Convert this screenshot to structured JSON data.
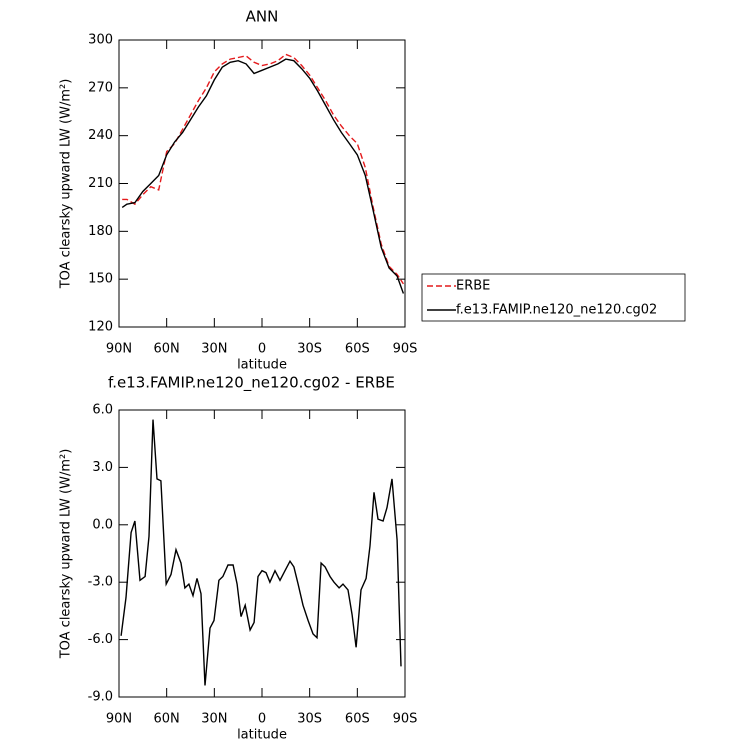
{
  "chart_data": [
    {
      "type": "line",
      "title": "ANN",
      "x_label": "latitude",
      "y_label": "TOA clearsky upward LW (W/m²)",
      "xlim": [
        90,
        -90
      ],
      "ylim": [
        120,
        300
      ],
      "xticks": [
        {
          "value": 90,
          "label": "90N"
        },
        {
          "value": 60,
          "label": "60N"
        },
        {
          "value": 30,
          "label": "30N"
        },
        0,
        {
          "value": -30,
          "label": "30S"
        },
        {
          "value": -60,
          "label": "60S"
        },
        {
          "value": -90,
          "label": "90S"
        }
      ],
      "yticks": [
        120,
        150,
        180,
        210,
        240,
        270,
        300
      ],
      "x": [
        88,
        85,
        80,
        75,
        70,
        65,
        60,
        55,
        50,
        45,
        40,
        35,
        30,
        25,
        20,
        15,
        10,
        5,
        0,
        -5,
        -10,
        -15,
        -20,
        -25,
        -30,
        -35,
        -40,
        -45,
        -50,
        -55,
        -60,
        -65,
        -70,
        -75,
        -80,
        -85,
        -89
      ],
      "series": [
        {
          "name": "ERBE",
          "color": "#e41a1c",
          "linestyle": "dashed",
          "values": [
            200,
            200,
            197,
            203,
            208,
            206,
            230,
            235,
            244,
            253,
            262,
            270,
            280,
            285,
            288,
            289,
            290,
            286,
            284,
            285,
            287,
            291,
            289,
            284,
            278,
            270,
            262,
            253,
            246,
            240,
            235,
            220,
            195,
            172,
            158,
            153,
            147
          ]
        },
        {
          "name": "f.e13.FAMIP.ne120_ne120.cg02",
          "color": "#000000",
          "linestyle": "solid",
          "values": [
            195,
            197,
            198,
            205,
            210,
            215,
            228,
            236,
            242,
            250,
            258,
            265,
            275,
            283,
            286,
            287,
            285,
            279,
            281,
            283,
            285,
            288,
            287,
            282,
            276,
            268,
            259,
            250,
            242,
            235,
            228,
            215,
            193,
            170,
            157,
            152,
            141
          ]
        }
      ],
      "legend": "right"
    },
    {
      "type": "line",
      "title": "f.e13.FAMIP.ne120_ne120.cg02 - ERBE",
      "x_label": "latitude",
      "y_label": "TOA clearsky upward LW (W/m²)",
      "xlim": [
        90,
        -90
      ],
      "ylim": [
        -9,
        6
      ],
      "xticks": [
        {
          "value": 90,
          "label": "90N"
        },
        {
          "value": 60,
          "label": "60N"
        },
        {
          "value": 30,
          "label": "30N"
        },
        0,
        {
          "value": -30,
          "label": "30S"
        },
        {
          "value": -60,
          "label": "60S"
        },
        {
          "value": -90,
          "label": "90S"
        }
      ],
      "yticks": [
        {
          "value": -9,
          "label": "-9.0"
        },
        {
          "value": -6,
          "label": "-6.0"
        },
        {
          "value": -3,
          "label": "-3.0"
        },
        {
          "value": 0,
          "label": "0.0"
        },
        {
          "value": 3,
          "label": "3.0"
        },
        {
          "value": 6,
          "label": "6.0"
        }
      ],
      "x": [
        88.7,
        85.6,
        82.4,
        80,
        76.8,
        73.6,
        71.1,
        68.6,
        66.1,
        63.6,
        60.3,
        57.3,
        54.1,
        51,
        48.5,
        46,
        43.4,
        40.9,
        38.4,
        35.9,
        32.7,
        30.2,
        27.1,
        24.6,
        21.4,
        18.2,
        15.7,
        13.2,
        10.6,
        7.5,
        5,
        2.5,
        0,
        -2.5,
        -5,
        -8.2,
        -11.3,
        -14.5,
        -17.6,
        -20.1,
        -22.7,
        -25.8,
        -29,
        -32.1,
        -34.6,
        -37.2,
        -39.7,
        -42.8,
        -45.3,
        -48.5,
        -51,
        -54.1,
        -56.7,
        -59.2,
        -62.3,
        -65.5,
        -68,
        -70.5,
        -73,
        -76.2,
        -78.7,
        -81.8,
        -85,
        -87.5
      ],
      "series": [
        {
          "name": "f.e13.FAMIP.ne120_ne120.cg02 - ERBE",
          "color": "#000000",
          "linestyle": "solid",
          "values": [
            -5.8,
            -3.8,
            -0.4,
            0.2,
            -2.9,
            -2.7,
            -0.6,
            5.5,
            2.4,
            2.3,
            -3.1,
            -2.6,
            -1.3,
            -2.0,
            -3.3,
            -3.1,
            -3.7,
            -2.8,
            -3.6,
            -8.4,
            -5.4,
            -5.0,
            -2.9,
            -2.7,
            -2.1,
            -2.1,
            -3.1,
            -4.8,
            -4.2,
            -5.5,
            -5.1,
            -2.7,
            -2.4,
            -2.5,
            -3.0,
            -2.4,
            -2.9,
            -2.4,
            -1.9,
            -2.2,
            -3.1,
            -4.2,
            -5.0,
            -5.7,
            -5.9,
            -2.0,
            -2.2,
            -2.7,
            -3.0,
            -3.3,
            -3.1,
            -3.4,
            -4.7,
            -6.4,
            -3.4,
            -2.8,
            -1.1,
            1.7,
            0.3,
            0.2,
            0.9,
            2.4,
            -0.8,
            -7.4
          ]
        }
      ]
    }
  ]
}
